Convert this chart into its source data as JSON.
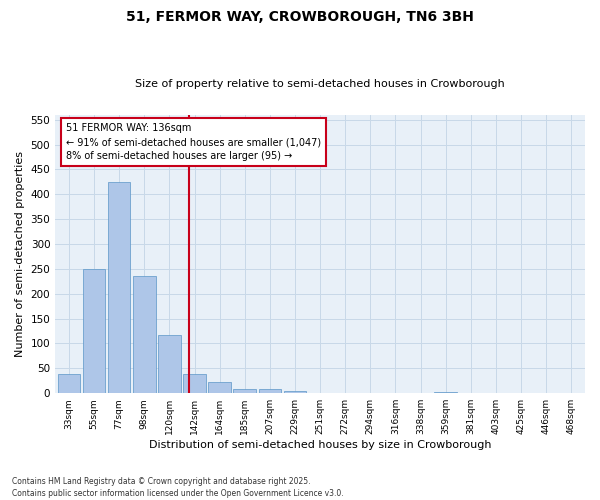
{
  "title": "51, FERMOR WAY, CROWBOROUGH, TN6 3BH",
  "subtitle": "Size of property relative to semi-detached houses in Crowborough",
  "xlabel": "Distribution of semi-detached houses by size in Crowborough",
  "ylabel": "Number of semi-detached properties",
  "categories": [
    "33sqm",
    "55sqm",
    "77sqm",
    "98sqm",
    "120sqm",
    "142sqm",
    "164sqm",
    "185sqm",
    "207sqm",
    "229sqm",
    "251sqm",
    "272sqm",
    "294sqm",
    "316sqm",
    "338sqm",
    "359sqm",
    "381sqm",
    "403sqm",
    "425sqm",
    "446sqm",
    "468sqm"
  ],
  "values": [
    38,
    250,
    425,
    235,
    118,
    38,
    22,
    9,
    8,
    5,
    0,
    0,
    0,
    0,
    0,
    2,
    0,
    0,
    0,
    0,
    1
  ],
  "bar_color": "#aec6e8",
  "bar_edge_color": "#5a96c8",
  "highlight_color": "#c8001a",
  "property_label": "51 FERMOR WAY: 136sqm",
  "pct_smaller": "91% of semi-detached houses are smaller (1,047)",
  "pct_larger": "8% of semi-detached houses are larger (95)",
  "ylim": [
    0,
    560
  ],
  "yticks": [
    0,
    50,
    100,
    150,
    200,
    250,
    300,
    350,
    400,
    450,
    500,
    550
  ],
  "grid_color": "#c8d8e8",
  "bg_color": "#e8f0f8",
  "footer": "Contains HM Land Registry data © Crown copyright and database right 2025.\nContains public sector information licensed under the Open Government Licence v3.0."
}
